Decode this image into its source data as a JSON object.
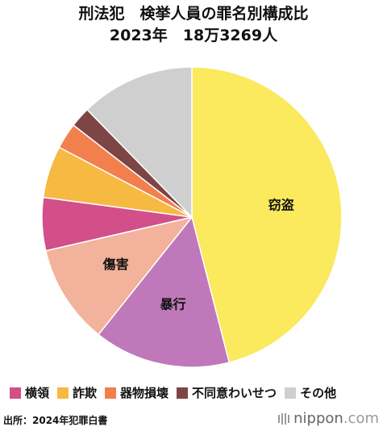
{
  "title": {
    "line1": "刑法犯　検挙人員の罪名別構成比",
    "line2": "2023年　18万3269人"
  },
  "chart_data": {
    "type": "pie",
    "title": "刑法犯　検挙人員の罪名別構成比",
    "subtitle": "2023年　18万3269人",
    "start_angle": "12 o'clock",
    "direction": "clockwise",
    "slices": [
      {
        "name": "窃盗",
        "value": 46.0,
        "color": "#fbe95e",
        "label": "窃盗"
      },
      {
        "name": "暴行",
        "value": 14.7,
        "color": "#bf78ba",
        "label": "暴行"
      },
      {
        "name": "傷害",
        "value": 10.7,
        "color": "#f2b29b",
        "label": "傷害"
      },
      {
        "name": "横領",
        "value": 5.7,
        "color": "#d24f8a",
        "label": ""
      },
      {
        "name": "詐欺",
        "value": 5.6,
        "color": "#f6b942",
        "label": ""
      },
      {
        "name": "器物損壊",
        "value": 2.8,
        "color": "#f2804e",
        "label": ""
      },
      {
        "name": "不同意わいせつ",
        "value": 2.2,
        "color": "#7d4545",
        "label": ""
      },
      {
        "name": "その他",
        "value": 12.3,
        "color": "#cfcfcf",
        "label": ""
      }
    ],
    "legend_position": "bottom"
  },
  "legend": [
    {
      "label": "横領",
      "color": "#d24f8a"
    },
    {
      "label": "詐欺",
      "color": "#f6b942"
    },
    {
      "label": "器物損壊",
      "color": "#f2804e"
    },
    {
      "label": "不同意わいせつ",
      "color": "#7d4545"
    },
    {
      "label": "その他",
      "color": "#cfcfcf"
    }
  ],
  "source": "出所：2024年犯罪白書",
  "brand": {
    "icon": "nippon-logo-icon",
    "name": "nippon",
    "tld": ".com"
  }
}
